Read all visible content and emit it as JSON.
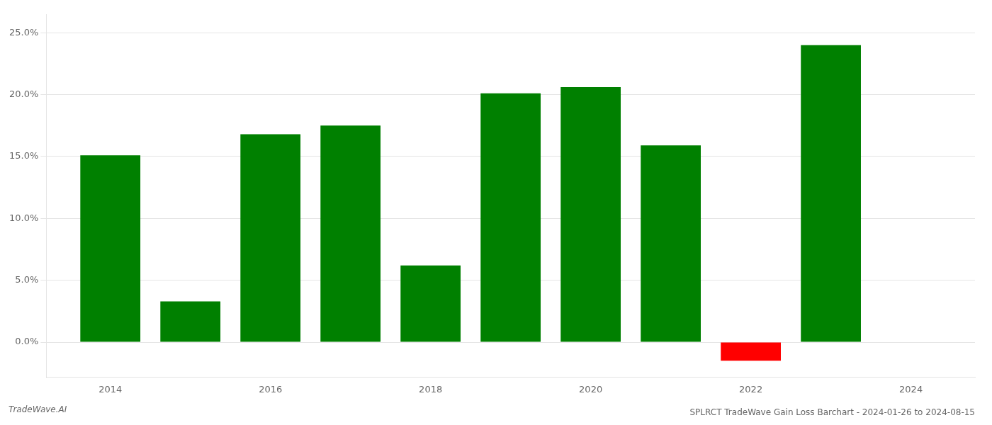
{
  "chart_data": {
    "type": "bar",
    "title": "SPLRCT TradeWave Gain Loss Barchart - 2024-01-26 to 2024-08-15",
    "annotations": [
      "TradeWave.AI"
    ],
    "x": [
      2014,
      2015,
      2016,
      2017,
      2018,
      2019,
      2020,
      2021,
      2022,
      2023
    ],
    "values": [
      0.151,
      0.033,
      0.168,
      0.175,
      0.062,
      0.201,
      0.206,
      0.159,
      -0.015,
      0.24
    ],
    "colors": [
      "#008000",
      "#008000",
      "#008000",
      "#008000",
      "#008000",
      "#008000",
      "#008000",
      "#008000",
      "#ff0000",
      "#008000"
    ],
    "xlim": [
      2013.2,
      2024.8
    ],
    "xticks": [
      2014,
      2016,
      2018,
      2020,
      2022,
      2024
    ],
    "ylim": [
      -0.028,
      0.265
    ],
    "yticks": [
      {
        "value": 0.0,
        "label": "0.0%"
      },
      {
        "value": 0.05,
        "label": "5.0%"
      },
      {
        "value": 0.1,
        "label": "10.0%"
      },
      {
        "value": 0.15,
        "label": "15.0%"
      },
      {
        "value": 0.2,
        "label": "20.0%"
      },
      {
        "value": 0.25,
        "label": "25.0%"
      }
    ],
    "grid": true
  }
}
